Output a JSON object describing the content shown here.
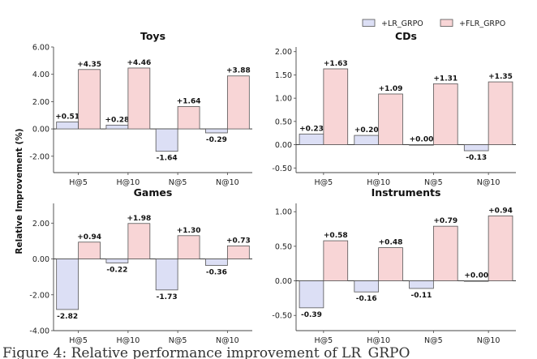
{
  "chart_data": [
    {
      "type": "bar",
      "title": "Toys",
      "categories": [
        "H@5",
        "H@10",
        "N@5",
        "N@10"
      ],
      "series": [
        {
          "name": "+LR_GRPO",
          "values": [
            0.51,
            0.28,
            -1.64,
            -0.29
          ],
          "labels": [
            "+0.51",
            "+0.28",
            "-1.64",
            "-0.29"
          ]
        },
        {
          "name": "+FLR_GRPO",
          "values": [
            4.35,
            4.46,
            1.64,
            3.88
          ],
          "labels": [
            "+4.35",
            "+4.46",
            "+1.64",
            "+3.88"
          ]
        }
      ],
      "ylim": [
        -3.2,
        6.0
      ],
      "yticks": [
        -2.0,
        0.0,
        2.0,
        4.0,
        6.0
      ],
      "ytick_labels": [
        "-2.00",
        "0.00",
        "2.00",
        "4.00",
        "6.00"
      ]
    },
    {
      "type": "bar",
      "title": "CDs",
      "categories": [
        "H@5",
        "H@10",
        "N@5",
        "N@10"
      ],
      "series": [
        {
          "name": "+LR_GRPO",
          "values": [
            0.23,
            0.2,
            0.0,
            -0.13
          ],
          "labels": [
            "+0.23",
            "+0.20",
            "+0.00",
            "-0.13"
          ]
        },
        {
          "name": "+FLR_GRPO",
          "values": [
            1.63,
            1.09,
            1.31,
            1.35
          ],
          "labels": [
            "+1.63",
            "+1.09",
            "+1.31",
            "+1.35"
          ]
        }
      ],
      "ylim": [
        -0.6,
        2.1
      ],
      "yticks": [
        -0.5,
        0.0,
        0.5,
        1.0,
        1.5,
        2.0
      ],
      "ytick_labels": [
        "-0.50",
        "0.00",
        "0.50",
        "1.00",
        "1.50",
        "2.00"
      ]
    },
    {
      "type": "bar",
      "title": "Games",
      "categories": [
        "H@5",
        "H@10",
        "N@5",
        "N@10"
      ],
      "series": [
        {
          "name": "+LR_GRPO",
          "values": [
            -2.82,
            -0.22,
            -1.73,
            -0.36
          ],
          "labels": [
            "-2.82",
            "-0.22",
            "-1.73",
            "-0.36"
          ]
        },
        {
          "name": "+FLR_GRPO",
          "values": [
            0.94,
            1.98,
            1.3,
            0.73
          ],
          "labels": [
            "+0.94",
            "+1.98",
            "+1.30",
            "+0.73"
          ]
        }
      ],
      "ylim": [
        -4.0,
        3.1
      ],
      "yticks": [
        -4.0,
        -2.0,
        0.0,
        2.0
      ],
      "ytick_labels": [
        "-4.00",
        "-2.00",
        "0.00",
        "2.00"
      ]
    },
    {
      "type": "bar",
      "title": "Instruments",
      "categories": [
        "H@5",
        "H@10",
        "N@5",
        "N@10"
      ],
      "series": [
        {
          "name": "+LR_GRPO",
          "values": [
            -0.39,
            -0.16,
            -0.11,
            0.0
          ],
          "labels": [
            "-0.39",
            "-0.16",
            "-0.11",
            "+0.00"
          ]
        },
        {
          "name": "+FLR_GRPO",
          "values": [
            0.58,
            0.48,
            0.79,
            0.94
          ],
          "labels": [
            "+0.58",
            "+0.48",
            "+0.79",
            "+0.94"
          ]
        }
      ],
      "ylim": [
        -0.72,
        1.12
      ],
      "yticks": [
        -0.5,
        0.0,
        0.5,
        1.0
      ],
      "ytick_labels": [
        "-0.50",
        "0.00",
        "0.50",
        "1.00"
      ]
    }
  ],
  "ylabel": "Relative Improvement (%)",
  "legend": {
    "placement": "top-right",
    "items": [
      {
        "label": "+LR_GRPO",
        "color": "#dcdff5"
      },
      {
        "label": "+FLR_GRPO",
        "color": "#f8d5d6"
      }
    ]
  },
  "colors": {
    "lr": "#dcdff5",
    "flr": "#f8d5d6",
    "edge": "#555555"
  },
  "caption_fragment": "Figure 4: Relative performance improvement of LR_GRPO"
}
